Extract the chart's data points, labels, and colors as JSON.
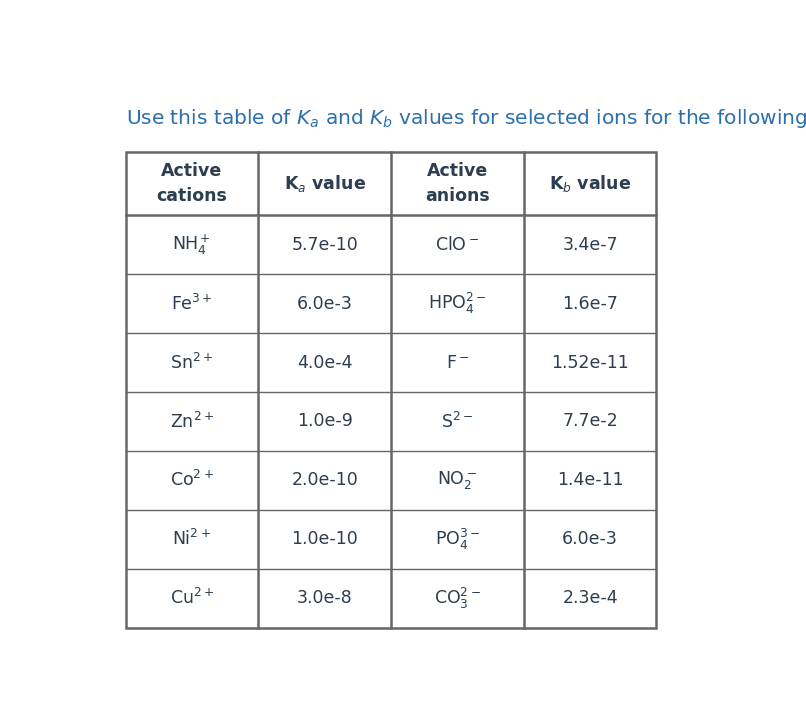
{
  "title_plain": "Use this table of K",
  "title_color": "#2c6fad",
  "background_color": "#ffffff",
  "col_headers_display": [
    "Active\ncations",
    "K$_a$ value",
    "Active\nanions",
    "K$_b$ value"
  ],
  "rows_display": [
    [
      "NH$_4^+$",
      "5.7e-10",
      "ClO$^-$",
      "3.4e-7"
    ],
    [
      "Fe$^{3+}$",
      "6.0e-3",
      "HPO$_4^{2-}$",
      "1.6e-7"
    ],
    [
      "Sn$^{2+}$",
      "4.0e-4",
      "F$^-$",
      "1.52e-11"
    ],
    [
      "Zn$^{2+}$",
      "1.0e-9",
      "S$^{2-}$",
      "7.7e-2"
    ],
    [
      "Co$^{2+}$",
      "2.0e-10",
      "NO$_2^-$",
      "1.4e-11"
    ],
    [
      "Ni$^{2+}$",
      "1.0e-10",
      "PO$_4^{3-}$",
      "6.0e-3"
    ],
    [
      "Cu$^{2+}$",
      "3.0e-8",
      "CO$_3^{2-}$",
      "2.3e-4"
    ]
  ],
  "text_color": "#2c3e50",
  "header_text_color": "#2c3e50",
  "line_color": "#666666",
  "font_size": 12.5,
  "header_font_size": 12.5,
  "title_font_size": 14.5
}
